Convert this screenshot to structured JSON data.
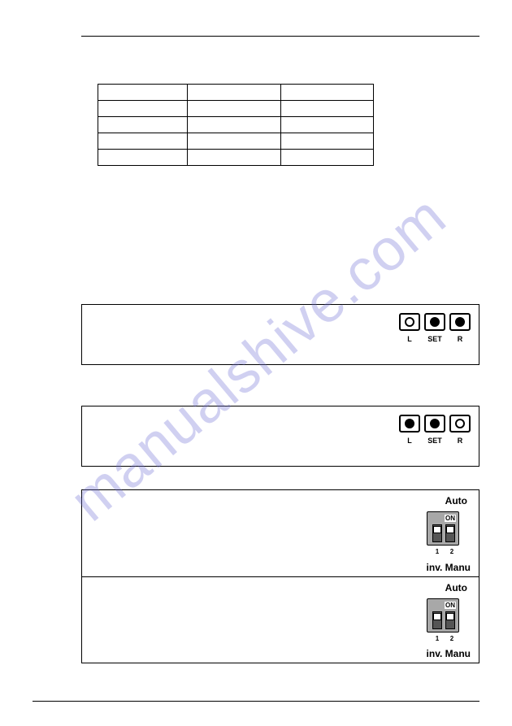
{
  "watermark": "manualshive.com",
  "table": {
    "rows": 5,
    "cols": 3
  },
  "led_boxes": [
    {
      "leds": [
        {
          "label": "L",
          "filled": false
        },
        {
          "label": "SET",
          "filled": true
        },
        {
          "label": "R",
          "filled": true
        }
      ]
    },
    {
      "leds": [
        {
          "label": "L",
          "filled": true
        },
        {
          "label": "SET",
          "filled": true
        },
        {
          "label": "R",
          "filled": false
        }
      ]
    }
  ],
  "dip_rows": [
    {
      "top": "Auto",
      "bottom": "inv.  Manu",
      "on": "ON",
      "nums": [
        "1",
        "2"
      ]
    },
    {
      "top": "Auto",
      "bottom": "inv.  Manu",
      "on": "ON",
      "nums": [
        "1",
        "2"
      ]
    }
  ]
}
